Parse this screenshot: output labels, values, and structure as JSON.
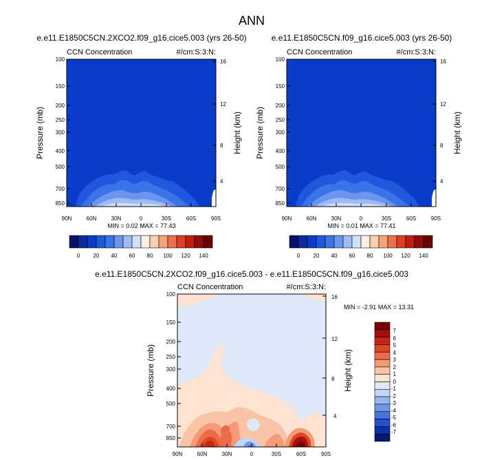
{
  "figure": {
    "title": "ANN"
  },
  "chart_data": [
    {
      "type": "contour",
      "title": "e.e11.E1850C5CN.2XCO2.f09_g16.cice5.003 (yrs 26-50)",
      "variable": "CCN Concentration",
      "units": "#/cm:S:3:N:",
      "ylabel": "Pressure (mb)",
      "ylabel_right": "Height (km)",
      "x_ticks": [
        "90N",
        "60N",
        "30N",
        "0",
        "30S",
        "60S",
        "90S"
      ],
      "y_ticks": [
        "100",
        "150",
        "200",
        "250",
        "300",
        "400",
        "500",
        "700",
        "850"
      ],
      "y_right_ticks": [
        "16",
        "12",
        "8",
        "4"
      ],
      "stats": {
        "min": "0.02",
        "max": "77.43",
        "text": "MIN =  0.02  MAX = 77.43"
      },
      "colorbar_labels": [
        "0",
        "20",
        "40",
        "60",
        "80",
        "100",
        "120",
        "140"
      ],
      "colorbar_levels": [
        0,
        10,
        20,
        30,
        40,
        50,
        60,
        70,
        80,
        90,
        100,
        110,
        120,
        130,
        140
      ],
      "colorbar_colors": [
        "#08126e",
        "#0d2c9c",
        "#0a3cc8",
        "#1f58dc",
        "#3b73e8",
        "#6b95ee",
        "#9ebbf4",
        "#cfe0f9",
        "#fcefe2",
        "#f9cfb0",
        "#f4a47c",
        "#ec704c",
        "#dd4125",
        "#be1f11",
        "#8e0c0c",
        "#6a0404"
      ]
    },
    {
      "type": "contour",
      "title": "e.e11.E1850C5CN.f09_g16.cice5.003 (yrs 26-50)",
      "variable": "CCN Concentration",
      "units": "#/cm:S:3:N:",
      "ylabel": "Pressure (mb)",
      "ylabel_right": "Height (km)",
      "x_ticks": [
        "90N",
        "60N",
        "30N",
        "0",
        "30S",
        "60S",
        "90S"
      ],
      "y_ticks": [
        "100",
        "150",
        "200",
        "250",
        "300",
        "400",
        "500",
        "700",
        "850"
      ],
      "y_right_ticks": [
        "16",
        "12",
        "8",
        "4"
      ],
      "stats": {
        "min": "0.01",
        "max": "77.41",
        "text": "MIN =  0.01  MAX = 77.41"
      },
      "colorbar_labels": [
        "0",
        "20",
        "40",
        "60",
        "80",
        "100",
        "120",
        "140"
      ],
      "colorbar_levels": [
        0,
        10,
        20,
        30,
        40,
        50,
        60,
        70,
        80,
        90,
        100,
        110,
        120,
        130,
        140
      ],
      "colorbar_colors": [
        "#08126e",
        "#0d2c9c",
        "#0a3cc8",
        "#1f58dc",
        "#3b73e8",
        "#6b95ee",
        "#9ebbf4",
        "#cfe0f9",
        "#fcefe2",
        "#f9cfb0",
        "#f4a47c",
        "#ec704c",
        "#dd4125",
        "#be1f11",
        "#8e0c0c",
        "#6a0404"
      ]
    },
    {
      "type": "contour",
      "title": "e.e11.E1850C5CN.2XCO2.f09_g16.cice5.003 - e.e11.E1850C5CN.f09_g16.cice5.003",
      "variable": "CCN Concentration",
      "units": "#/cm:S:3:N:",
      "ylabel": "Pressure (mb)",
      "ylabel_right": "Height (km)",
      "x_ticks": [
        "90N",
        "60N",
        "30N",
        "0",
        "30S",
        "60S",
        "90S"
      ],
      "y_ticks": [
        "100",
        "150",
        "200",
        "250",
        "300",
        "400",
        "500",
        "700",
        "850"
      ],
      "y_right_ticks": [
        "16",
        "12",
        "8",
        "4"
      ],
      "stats": {
        "min": "-2.91",
        "max": "13.31",
        "text": "MIN =  -2.91  MAX =  13.31"
      },
      "colorbar_labels": [
        "7",
        "6",
        "5",
        "4",
        "3",
        "2",
        "1",
        "0",
        "-1",
        "-2",
        "-3",
        "-4",
        "-5",
        "-6",
        "-7"
      ],
      "colorbar_colors": [
        "#7a0000",
        "#a50f0f",
        "#c8240f",
        "#dd4525",
        "#ec6b48",
        "#f59a76",
        "#f9c4a5",
        "#fce3d2",
        "#dde9f8",
        "#bfd6f5",
        "#96b8ee",
        "#6f97e6",
        "#4775dd",
        "#2452cc",
        "#0e32a6",
        "#08166e"
      ]
    }
  ]
}
